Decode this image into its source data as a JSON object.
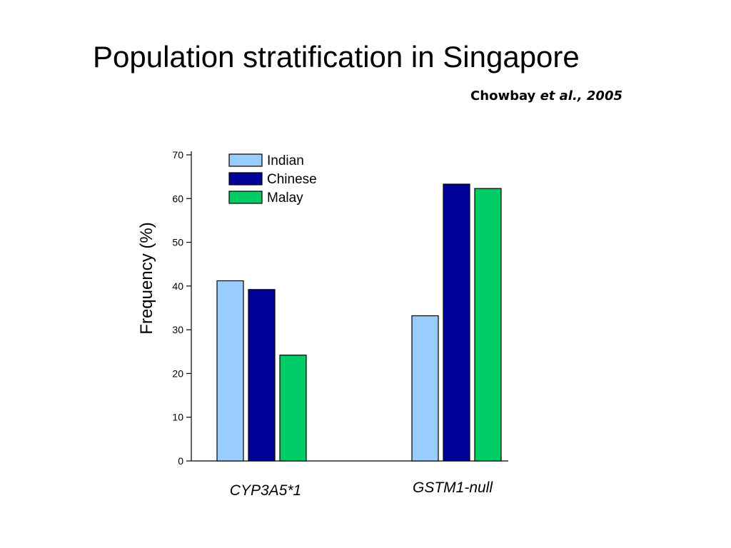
{
  "slide": {
    "title": "Population stratification in Singapore",
    "citation_author": "Chowbay",
    "citation_rest": "et al., 2005"
  },
  "chart_data": {
    "type": "bar",
    "title": "",
    "xlabel": "",
    "ylabel": "Frequency (%)",
    "ylim": [
      0,
      70
    ],
    "yticks": [
      0,
      10,
      20,
      30,
      40,
      50,
      60,
      70
    ],
    "categories": [
      "CYP3A5*1",
      "GSTM1-null"
    ],
    "series": [
      {
        "name": "Indian",
        "color": "#99ccff",
        "values": [
          41.2,
          33.2
        ]
      },
      {
        "name": "Chinese",
        "color": "#000099",
        "values": [
          39.2,
          63.3
        ]
      },
      {
        "name": "Malay",
        "color": "#00cc66",
        "values": [
          24.2,
          62.3
        ]
      }
    ],
    "legend_position": "top-left",
    "grid": false
  }
}
